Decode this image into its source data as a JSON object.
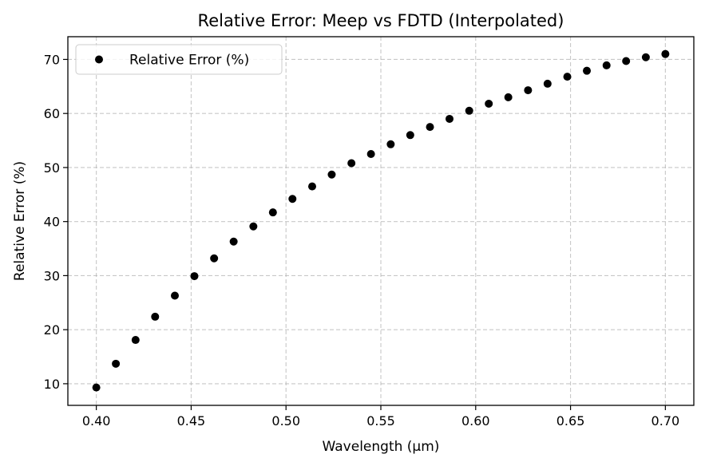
{
  "chart_data": {
    "type": "scatter",
    "title": "Relative Error: Meep vs FDTD (Interpolated)",
    "xlabel": "Wavelength (µm)",
    "ylabel": "Relative Error (%)",
    "xlim": [
      0.385,
      0.715
    ],
    "ylim": [
      6.0,
      74.2
    ],
    "xticks": [
      0.4,
      0.45,
      0.5,
      0.55,
      0.6,
      0.65,
      0.7
    ],
    "xtick_labels": [
      "0.40",
      "0.45",
      "0.50",
      "0.55",
      "0.60",
      "0.65",
      "0.70"
    ],
    "yticks": [
      10,
      20,
      30,
      40,
      50,
      60,
      70
    ],
    "ytick_labels": [
      "10",
      "20",
      "30",
      "40",
      "50",
      "60",
      "70"
    ],
    "grid": true,
    "grid_style": "dashed",
    "legend_position": "top-left",
    "series": [
      {
        "name": "Relative Error (%)",
        "color": "#000000",
        "marker": "circle",
        "x": [
          0.4,
          0.4103,
          0.4207,
          0.431,
          0.4414,
          0.4517,
          0.4621,
          0.4724,
          0.4828,
          0.4931,
          0.5034,
          0.5138,
          0.5241,
          0.5345,
          0.5448,
          0.5552,
          0.5655,
          0.5759,
          0.5862,
          0.5966,
          0.6069,
          0.6172,
          0.6276,
          0.6379,
          0.6483,
          0.6586,
          0.669,
          0.6793,
          0.6897,
          0.7
        ],
        "y": [
          9.3,
          13.7,
          18.1,
          22.4,
          26.3,
          29.9,
          33.2,
          36.3,
          39.1,
          41.7,
          44.2,
          46.5,
          48.7,
          50.8,
          52.5,
          54.3,
          56.0,
          57.5,
          59.0,
          60.5,
          61.8,
          63.0,
          64.3,
          65.5,
          66.8,
          67.9,
          68.9,
          69.7,
          70.4,
          71.0
        ]
      }
    ]
  }
}
